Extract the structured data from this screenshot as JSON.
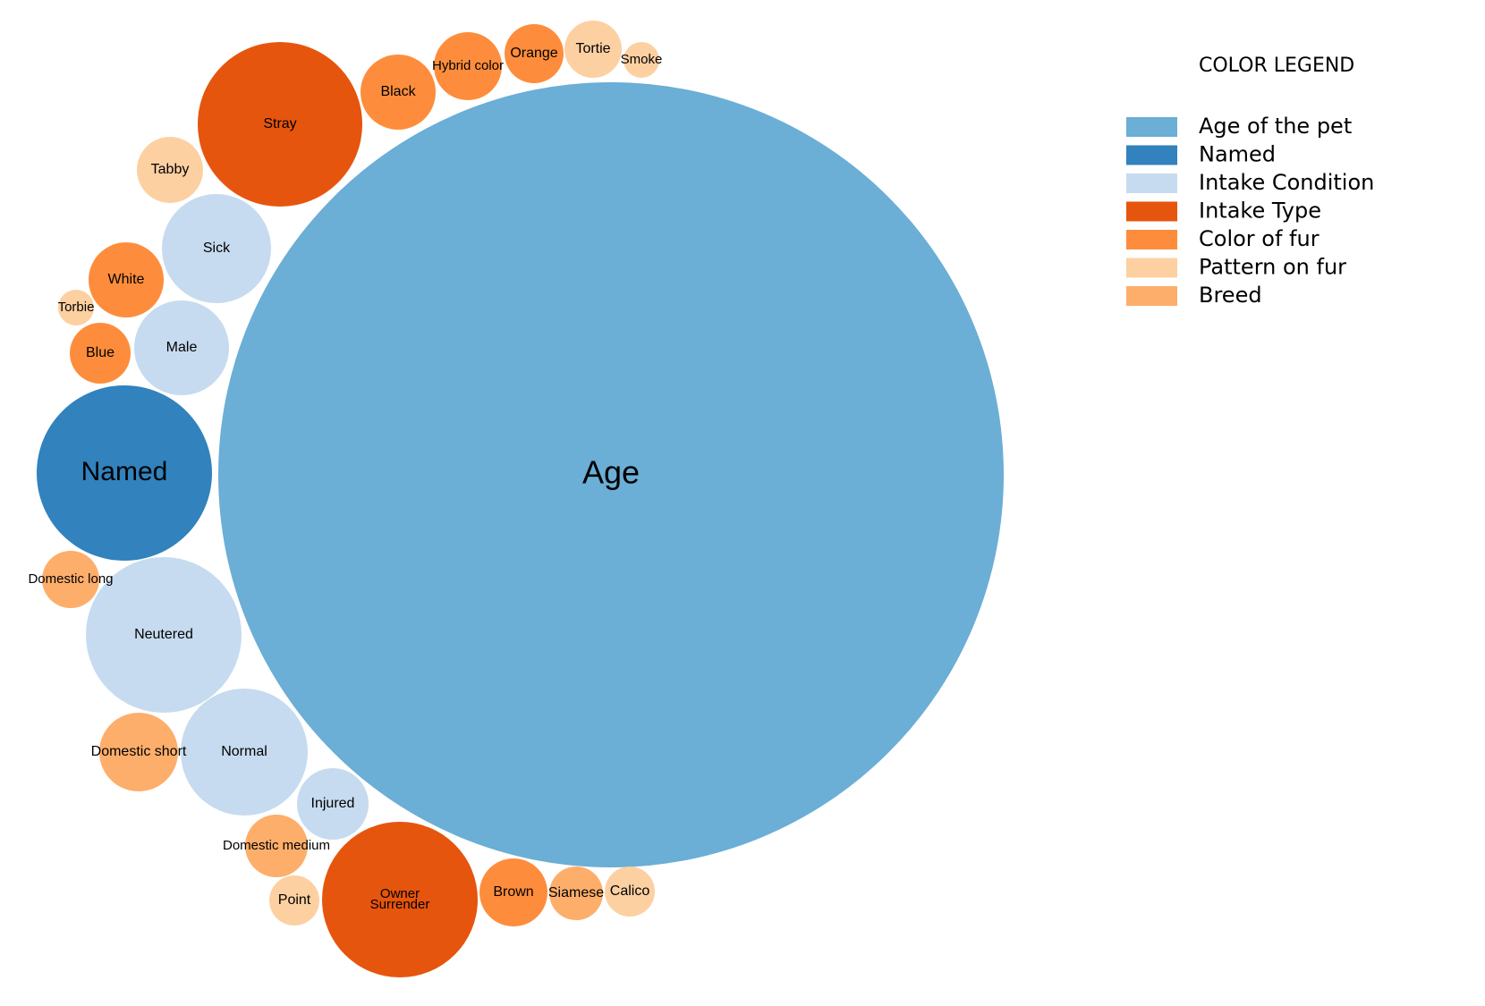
{
  "chart_data": {
    "type": "bubble",
    "title": "",
    "legend": {
      "title": "COLOR LEGEND",
      "placement": "top-right",
      "entries": [
        {
          "label": "Age of the pet",
          "color": "#6baed6"
        },
        {
          "label": "Named",
          "color": "#3182bd"
        },
        {
          "label": "Intake Condition",
          "color": "#c6dbef"
        },
        {
          "label": "Intake Type",
          "color": "#e6550d"
        },
        {
          "label": "Color of fur",
          "color": "#fd8d3c"
        },
        {
          "label": "Pattern on fur",
          "color": "#fdd0a2"
        },
        {
          "label": "Breed",
          "color": "#fdae6b"
        }
      ]
    },
    "bubbles": [
      {
        "label": "Age",
        "group": "Age of the pet",
        "size": 100
      },
      {
        "label": "Named",
        "group": "Named",
        "size": 5
      },
      {
        "label": "Stray",
        "group": "Intake Type",
        "size": 4.4
      },
      {
        "label": "Owner Surrender",
        "group": "Intake Type",
        "size": 3.9
      },
      {
        "label": "Neutered",
        "group": "Intake Condition",
        "size": 3.9
      },
      {
        "label": "Normal",
        "group": "Intake Condition",
        "size": 2.6
      },
      {
        "label": "Sick",
        "group": "Intake Condition",
        "size": 2
      },
      {
        "label": "Male",
        "group": "Intake Condition",
        "size": 1.5
      },
      {
        "label": "Injured",
        "group": "Intake Condition",
        "size": 0.85
      },
      {
        "label": "Black",
        "group": "Color of fur",
        "size": 0.95
      },
      {
        "label": "Hybrid color",
        "group": "Color of fur",
        "size": 0.75
      },
      {
        "label": "Orange",
        "group": "Color of fur",
        "size": 0.6
      },
      {
        "label": "White",
        "group": "Color of fur",
        "size": 0.9
      },
      {
        "label": "Blue",
        "group": "Color of fur",
        "size": 0.65
      },
      {
        "label": "Brown",
        "group": "Color of fur",
        "size": 0.75
      },
      {
        "label": "Tabby",
        "group": "Pattern on fur",
        "size": 0.8
      },
      {
        "label": "Tortie",
        "group": "Pattern on fur",
        "size": 0.5
      },
      {
        "label": "Smoke",
        "group": "Pattern on fur",
        "size": 0.2
      },
      {
        "label": "Torbie",
        "group": "Pattern on fur",
        "size": 0.2
      },
      {
        "label": "Point",
        "group": "Pattern on fur",
        "size": 0.4
      },
      {
        "label": "Calico",
        "group": "Pattern on fur",
        "size": 0.38
      },
      {
        "label": "Domestic short",
        "group": "Breed",
        "size": 1
      },
      {
        "label": "Domestic long",
        "group": "Breed",
        "size": 0.5
      },
      {
        "label": "Domestic medium",
        "group": "Breed",
        "size": 0.6
      },
      {
        "label": "Siamese",
        "group": "Breed",
        "size": 0.45
      }
    ]
  }
}
